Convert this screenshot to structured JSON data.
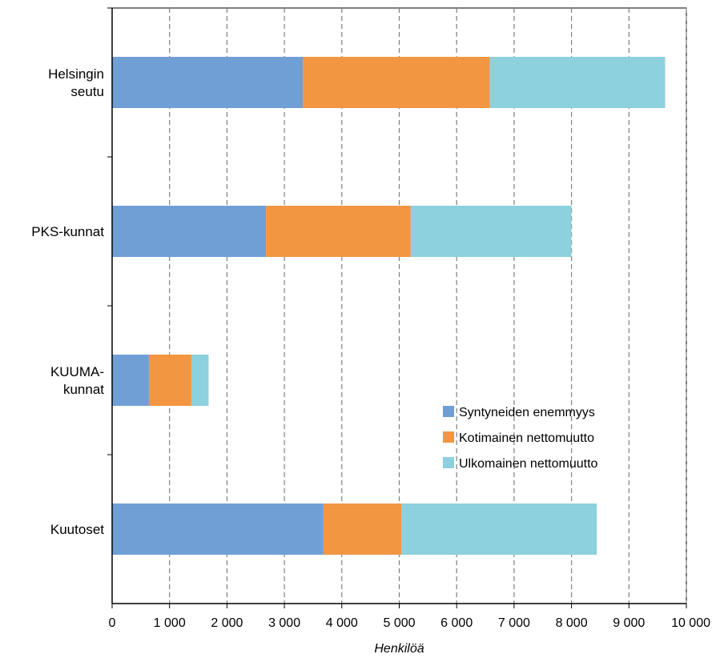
{
  "chart_data": {
    "type": "bar",
    "orientation": "horizontal",
    "stacked": true,
    "categories": [
      [
        "Helsingin",
        "seutu"
      ],
      [
        "PKS-kunnat"
      ],
      [
        "KUUMA-",
        "kunnat"
      ],
      [
        "Kuutoset"
      ]
    ],
    "series": [
      {
        "name": "Syntyneiden enemmyys",
        "color": "#6f9fd4",
        "values": [
          3320,
          2680,
          640,
          3680
        ]
      },
      {
        "name": "Kotimainen nettomuutto",
        "color": "#f29642",
        "values": [
          3260,
          2520,
          740,
          1360
        ]
      },
      {
        "name": "Ulkomainen nettomuutto",
        "color": "#8dd0de",
        "values": [
          3050,
          2800,
          300,
          3400
        ]
      }
    ],
    "xlim": [
      0,
      10000
    ],
    "x_ticks": [
      0,
      1000,
      2000,
      3000,
      4000,
      5000,
      6000,
      7000,
      8000,
      9000,
      10000
    ],
    "x_tick_labels": [
      "0",
      "1 000",
      "2 000",
      "3 000",
      "4 000",
      "5 000",
      "6 000",
      "7 000",
      "8 000",
      "9 000",
      "10 000"
    ],
    "xlabel": "Henkilöä",
    "ylabel": "",
    "title": "",
    "grid": "vertical dashed",
    "legend_position": "lower-right"
  }
}
